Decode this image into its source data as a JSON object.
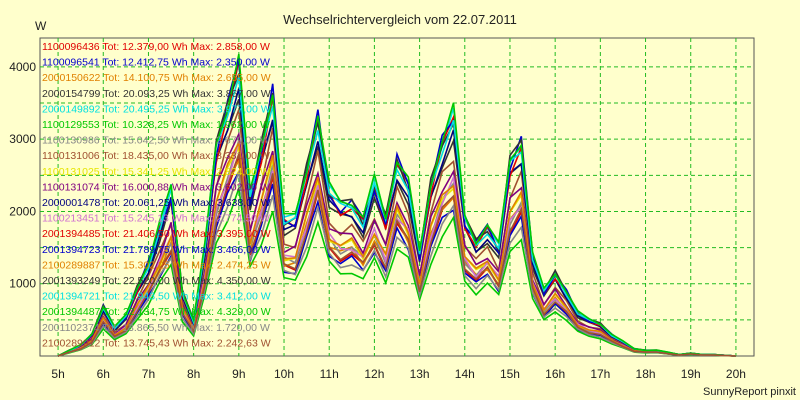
{
  "chart_data": {
    "type": "line",
    "title": "Wechselrichtervergleich vom 22.07.2011",
    "ylabel": "W",
    "xlabel": "",
    "ylim": [
      0,
      4400
    ],
    "yticks": [
      "1000",
      "2000",
      "3000",
      "4000"
    ],
    "categories": [
      "5h",
      "6h",
      "7h",
      "8h",
      "9h",
      "10h",
      "11h",
      "12h",
      "13h",
      "14h",
      "15h",
      "16h",
      "17h",
      "18h",
      "19h",
      "20h"
    ],
    "x": [
      5.0,
      5.25,
      5.5,
      5.75,
      6.0,
      6.25,
      6.5,
      6.75,
      7.0,
      7.25,
      7.5,
      7.75,
      8.0,
      8.25,
      8.5,
      8.75,
      9.0,
      9.25,
      9.5,
      9.75,
      10.0,
      10.25,
      10.5,
      10.75,
      11.0,
      11.25,
      11.5,
      11.75,
      12.0,
      12.25,
      12.5,
      12.75,
      13.0,
      13.25,
      13.5,
      13.75,
      14.0,
      14.25,
      14.5,
      14.75,
      15.0,
      15.25,
      15.5,
      15.75,
      16.0,
      16.25,
      16.5,
      16.75,
      17.0,
      17.25,
      17.5,
      17.75,
      18.0,
      18.25,
      18.5,
      18.75,
      19.0,
      19.25,
      19.5,
      19.75,
      20.0
    ],
    "grid": true,
    "legend_position": "top-left",
    "series": [
      {
        "name": "1100096436 Tot: 12.379,00 Wh Max: 2.858,00 W",
        "color": "#e00000",
        "scale": 0.65
      },
      {
        "name": "1100096541 Tot: 12.412,75 Wh Max: 2.350,00 W",
        "color": "#0000cc",
        "scale": 0.62
      },
      {
        "name": "2000150622 Tot: 14.100,75 Wh Max: 2.655,00 W",
        "color": "#e08000",
        "scale": 0.68
      },
      {
        "name": "2000154799 Tot: 20.093,25 Wh Max: 3.867,00 W",
        "color": "#333333",
        "scale": 0.9
      },
      {
        "name": "2000149892 Tot: 20.495,25 Wh Max: 3.977,00 W",
        "color": "#00e0e0",
        "scale": 1.0
      },
      {
        "name": "1100129553 Tot: 10.328,25 Wh Max: 1.962,00 W",
        "color": "#00c800",
        "scale": 0.55
      },
      {
        "name": "1100130986 Tot: 15.042,50 Wh Max: 2.679,00 W",
        "color": "#888888",
        "scale": 0.7
      },
      {
        "name": "1100131006 Tot: 18.435,00 Wh Max: 3.331,00 W",
        "color": "#a05030",
        "scale": 0.82
      },
      {
        "name": "1100131025 Tot: 15.341,25 Wh Max: 2.824,00 W",
        "color": "#e6e600",
        "scale": 0.72
      },
      {
        "name": "1100131074 Tot: 16.000,88 Wh Max: 3.602,00 W",
        "color": "#800080",
        "scale": 0.78
      },
      {
        "name": "2000001478 Tot: 20.061,25 Wh Max: 3.638,00 W",
        "color": "#000080",
        "scale": 0.92
      },
      {
        "name": "1100213451 Tot: 15.245,13 Wh Max: 2.774,50 W",
        "color": "#d070d0",
        "scale": 0.71
      },
      {
        "name": "2001394485 Tot: 21.406,50 Wh Max: 3.395,00 W",
        "color": "#e00000",
        "scale": 0.96
      },
      {
        "name": "2001394723 Tot: 21.789,75 Wh Max: 3.466,00 W",
        "color": "#0000cc",
        "scale": 0.98
      },
      {
        "name": "2100289887 Tot: 15.302,25 Wh Max: 2.474,25 W",
        "color": "#e08000",
        "scale": 0.73
      },
      {
        "name": "2001393249 Tot: 22.520,00 Wh Max: 4.350,00 W",
        "color": "#333333",
        "scale": 0.99
      },
      {
        "name": "2001394721 Tot: 21.943,50 Wh Max: 3.412,00 W",
        "color": "#00e0e0",
        "scale": 0.97
      },
      {
        "name": "2001394487 Tot: 22.134,75 Wh Max: 4.329,00 W",
        "color": "#00c800",
        "scale": 1.01
      },
      {
        "name": "2001102374 Tot: 13.865,50 Wh Max: 1.720,00 W",
        "color": "#888888",
        "scale": 0.6
      },
      {
        "name": "2100289912 Tot: 13.745,43 Wh Max: 2.242,63 W",
        "color": "#a05030",
        "scale": 0.66
      }
    ],
    "base_profile": [
      0,
      80,
      150,
      300,
      700,
      400,
      550,
      950,
      1300,
      1800,
      2300,
      900,
      500,
      1500,
      2900,
      3500,
      4100,
      2200,
      2900,
      3700,
      1900,
      1900,
      2600,
      3350,
      2300,
      2100,
      2150,
      1900,
      2400,
      1900,
      2750,
      2400,
      1400,
      2400,
      3000,
      3350,
      1900,
      1600,
      1800,
      1500,
      2700,
      3000,
      1400,
      900,
      1150,
      900,
      600,
      500,
      450,
      300,
      200,
      100,
      80,
      80,
      50,
      20,
      40,
      20,
      20,
      10,
      0
    ],
    "footer": "SunnyReport pinxit"
  }
}
